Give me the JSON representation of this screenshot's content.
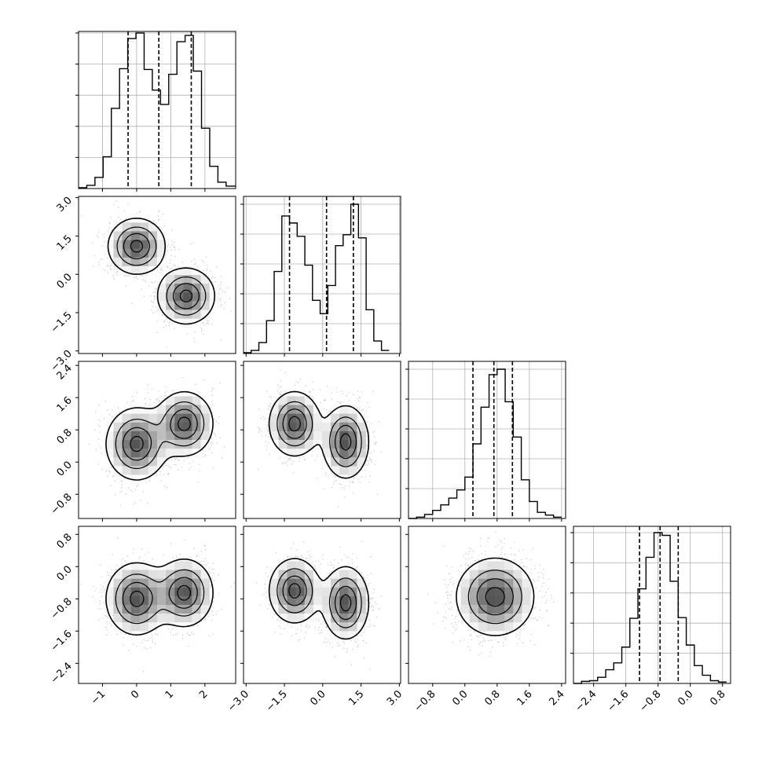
{
  "chart_data": {
    "type": "corner",
    "title": "",
    "grid": true,
    "colors": {
      "contour": "#000000",
      "points": "#555555",
      "quantile": "#000000"
    },
    "params": [
      {
        "range": [
          -1.7,
          2.9
        ],
        "ticks": [
          -1,
          0,
          1,
          2
        ],
        "tick_labels": [
          "−1",
          "0",
          "1",
          "2"
        ]
      },
      {
        "range": [
          -3.1,
          3.05
        ],
        "ticks": [
          -3.0,
          -1.5,
          0.0,
          1.5,
          3.0
        ],
        "tick_labels": [
          "−3.0",
          "−1.5",
          "0.0",
          "1.5",
          "3.0"
        ]
      },
      {
        "range": [
          -1.4,
          2.5
        ],
        "ticks": [
          -0.8,
          0.0,
          0.8,
          1.6,
          2.4
        ],
        "tick_labels": [
          "−0.8",
          "0.0",
          "0.8",
          "1.6",
          "2.4"
        ]
      },
      {
        "range": [
          -2.9,
          1.0
        ],
        "ticks": [
          -2.4,
          -1.6,
          -0.8,
          0.0,
          0.8
        ],
        "tick_labels": [
          "−2.4",
          "−1.6",
          "−0.8",
          "0.0",
          "0.8"
        ]
      }
    ],
    "histograms": [
      {
        "param": 0,
        "quantiles": [
          -0.25,
          0.65,
          1.6
        ],
        "bins": [
          -1.7,
          -1.46,
          -1.22,
          -0.98,
          -0.74,
          -0.5,
          -0.26,
          -0.02,
          0.22,
          0.46,
          0.7,
          0.94,
          1.18,
          1.42,
          1.66,
          1.9,
          2.14,
          2.38,
          2.62,
          2.9
        ],
        "counts": [
          1,
          4,
          14,
          40,
          101,
          151,
          189,
          196,
          150,
          124,
          106,
          144,
          185,
          193,
          148,
          76,
          28,
          8,
          3
        ]
      },
      {
        "param": 1,
        "quantiles": [
          -1.3,
          0.15,
          1.2
        ],
        "bins": [
          -3.1,
          -2.8,
          -2.5,
          -2.2,
          -1.9,
          -1.6,
          -1.3,
          -1.0,
          -0.7,
          -0.4,
          -0.1,
          0.2,
          0.5,
          0.8,
          1.1,
          1.4,
          1.7,
          2.0,
          2.3,
          2.6
        ],
        "counts": [
          1,
          4,
          14,
          42,
          105,
          176,
          167,
          150,
          113,
          68,
          51,
          87,
          138,
          152,
          191,
          148,
          56,
          16,
          4
        ]
      },
      {
        "param": 2,
        "quantiles": [
          0.2,
          0.72,
          1.18
        ],
        "bins": [
          -1.4,
          -1.2,
          -1.0,
          -0.8,
          -0.6,
          -0.4,
          -0.2,
          0.0,
          0.2,
          0.4,
          0.6,
          0.8,
          1.0,
          1.2,
          1.4,
          1.6,
          1.8,
          2.0,
          2.2,
          2.4
        ],
        "counts": [
          0,
          2,
          6,
          12,
          20,
          30,
          42,
          61,
          110,
          164,
          212,
          220,
          172,
          120,
          57,
          25,
          9,
          5,
          2
        ]
      },
      {
        "param": 3,
        "quantiles": [
          -1.26,
          -0.75,
          -0.3
        ],
        "bins": [
          -2.9,
          -2.7,
          -2.5,
          -2.3,
          -2.1,
          -1.9,
          -1.7,
          -1.5,
          -1.3,
          -1.1,
          -0.9,
          -0.7,
          -0.5,
          -0.3,
          -0.1,
          0.1,
          0.3,
          0.5,
          0.7,
          0.9
        ],
        "counts": [
          0,
          3,
          4,
          9,
          20,
          30,
          53,
          95,
          138,
          184,
          220,
          216,
          149,
          96,
          56,
          26,
          12,
          4,
          2
        ]
      }
    ],
    "scatter_pairs": [
      {
        "x": 0,
        "y": 1,
        "modes": [
          {
            "mx": 0.0,
            "my": 1.1,
            "sx": 0.42,
            "sy": 0.55,
            "w": 0.5
          },
          {
            "mx": 1.45,
            "my": -0.85,
            "sx": 0.42,
            "sy": 0.55,
            "w": 0.5
          }
        ]
      },
      {
        "x": 0,
        "y": 2,
        "modes": [
          {
            "mx": 0.0,
            "my": 0.45,
            "sx": 0.45,
            "sy": 0.45,
            "w": 0.5
          },
          {
            "mx": 1.4,
            "my": 0.95,
            "sx": 0.42,
            "sy": 0.4,
            "w": 0.5
          }
        ]
      },
      {
        "x": 1,
        "y": 2,
        "modes": [
          {
            "mx": -1.1,
            "my": 0.95,
            "sx": 0.5,
            "sy": 0.4,
            "w": 0.5
          },
          {
            "mx": 0.9,
            "my": 0.5,
            "sx": 0.45,
            "sy": 0.45,
            "w": 0.5
          }
        ]
      },
      {
        "x": 0,
        "y": 3,
        "modes": [
          {
            "mx": 0.0,
            "my": -0.8,
            "sx": 0.45,
            "sy": 0.45,
            "w": 0.5
          },
          {
            "mx": 1.4,
            "my": -0.65,
            "sx": 0.42,
            "sy": 0.42,
            "w": 0.5
          }
        ]
      },
      {
        "x": 1,
        "y": 3,
        "modes": [
          {
            "mx": -1.1,
            "my": -0.6,
            "sx": 0.5,
            "sy": 0.4,
            "w": 0.5
          },
          {
            "mx": 0.9,
            "my": -0.9,
            "sx": 0.45,
            "sy": 0.45,
            "w": 0.5
          }
        ]
      },
      {
        "x": 2,
        "y": 3,
        "modes": [
          {
            "mx": 0.75,
            "my": -0.75,
            "sx": 0.48,
            "sy": 0.48,
            "w": 1.0
          }
        ]
      }
    ]
  }
}
